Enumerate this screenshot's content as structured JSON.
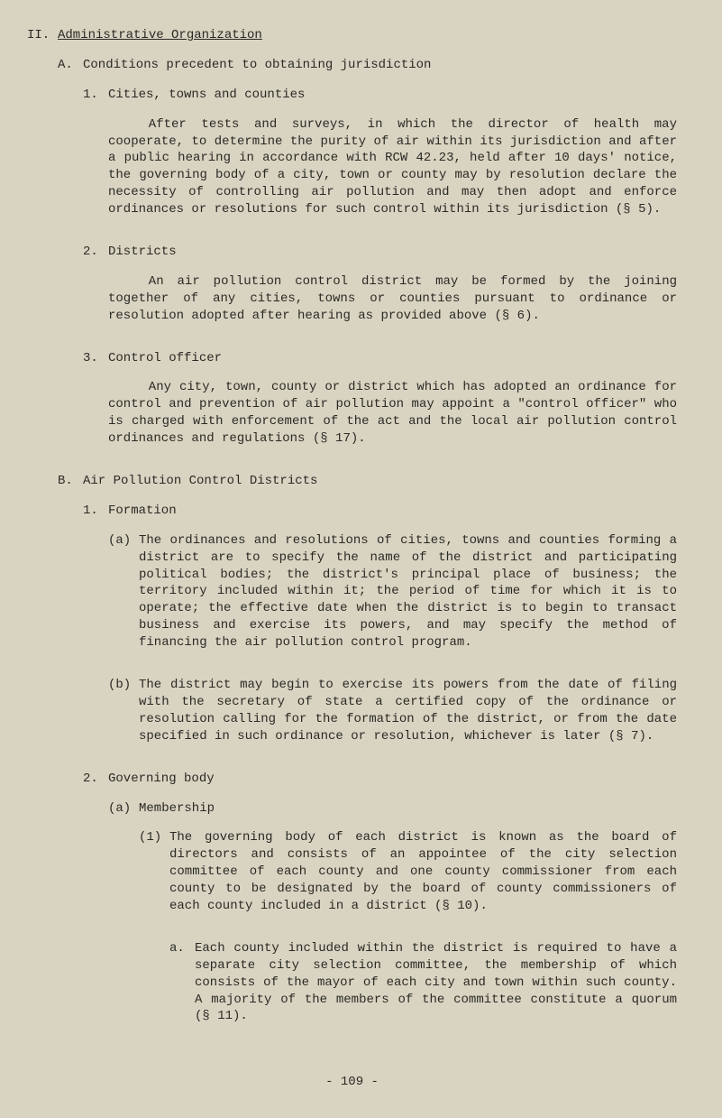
{
  "section": {
    "roman": "II.",
    "title": "Administrative Organization",
    "A": {
      "label": "A.",
      "title": "Conditions precedent to obtaining jurisdiction",
      "i1": {
        "num": "1.",
        "title": "Cities, towns and counties",
        "para": "After tests and surveys, in which the director of health may cooperate, to determine the purity of air within its jurisdiction and after a public hearing in accordance with RCW 42.23, held after 10 days' notice, the governing body of a city, town or county may by resolution declare the necessity of controlling air pollution and may then adopt and enforce ordinances or resolutions for such control within its jurisdiction (§ 5)."
      },
      "i2": {
        "num": "2.",
        "title": "Districts",
        "para": "An air pollution control district may be formed by the joining together of any cities, towns or counties pursuant to ordinance or resolution adopted after hearing as provided above (§ 6)."
      },
      "i3": {
        "num": "3.",
        "title": "Control officer",
        "para": "Any city, town, county or district which has adopted an ordinance for control and prevention of air pollution may appoint a \"control officer\" who is charged with enforcement of the act and the local air pollution control ordinances and regulations (§ 17)."
      }
    },
    "B": {
      "label": "B.",
      "title": "Air Pollution Control Districts",
      "i1": {
        "num": "1.",
        "title": "Formation",
        "a": {
          "label": "(a)",
          "para": "The ordinances and resolutions of cities, towns and counties forming a district are to specify the name of the district and participating political bodies; the district's principal place of business; the territory included within it; the period of time for which it is to operate; the effective date when the district is to begin to transact business and exercise its powers, and may specify the method of financing the air pollution control program."
        },
        "b": {
          "label": "(b)",
          "para": "The district may begin to exercise its powers from the date of filing with the secretary of state a certified copy of the ordinance or resolution calling for the formation of the district, or from the date specified in such ordinance or resolution, whichever is later (§ 7)."
        }
      },
      "i2": {
        "num": "2.",
        "title": "Governing body",
        "a": {
          "label": "(a)",
          "title": "Membership",
          "n1": {
            "label": "(1)",
            "para": "The governing body of each district is known as the board of directors and consists of an appointee of the city selection committee of each county and one county commissioner from each county to be designated by the board of county commissioners of each county included in a district (§ 10).",
            "sa": {
              "label": "a.",
              "para": "Each county included within the district is required to have a separate city selection committee, the membership of which consists of the mayor of each city and town within such county.  A majority of the members of the committee constitute a quorum (§ 11)."
            }
          }
        }
      }
    }
  },
  "page_number": "- 109 -"
}
